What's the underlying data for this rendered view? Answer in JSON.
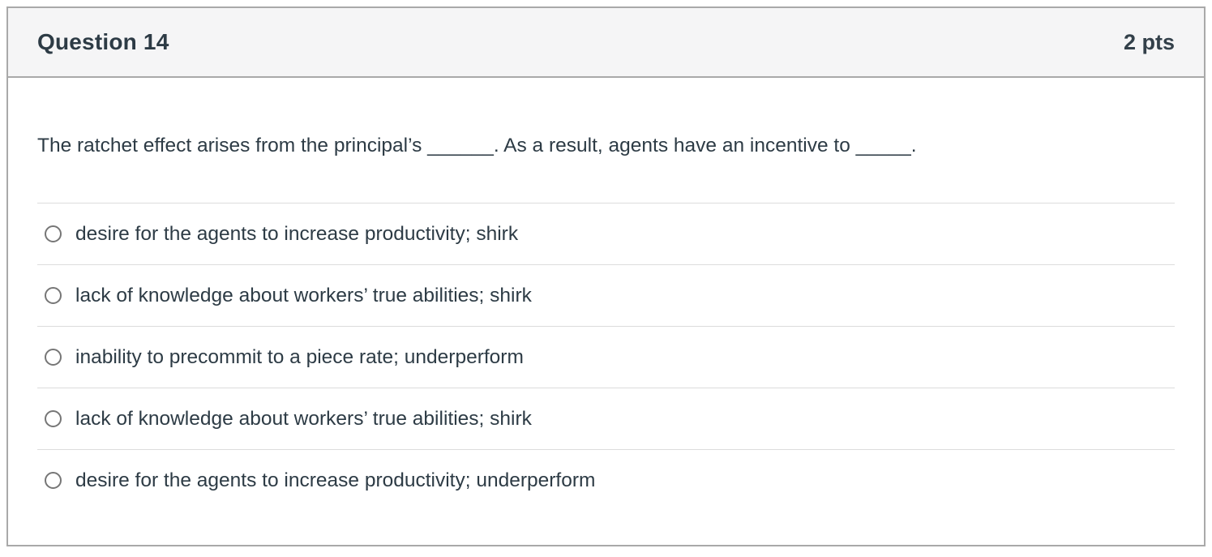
{
  "header": {
    "title": "Question 14",
    "points": "2 pts"
  },
  "question": {
    "text": "The ratchet effect arises from the principal’s ______. As a result, agents have an incentive to _____."
  },
  "options": [
    {
      "label": "desire for the agents to increase productivity; shirk",
      "selected": false
    },
    {
      "label": "lack of knowledge about workers’ true abilities; shirk",
      "selected": false
    },
    {
      "label": "inability to precommit to a piece rate; underperform",
      "selected": false
    },
    {
      "label": "lack of knowledge about workers’ true abilities; shirk",
      "selected": false
    },
    {
      "label": "desire for the agents to increase productivity; underperform",
      "selected": false
    }
  ],
  "colors": {
    "card_border": "#a9a9a9",
    "header_bg": "#f5f5f6",
    "text": "#2d3b45",
    "divider": "#dcdcdc",
    "radio_border": "#767676"
  }
}
